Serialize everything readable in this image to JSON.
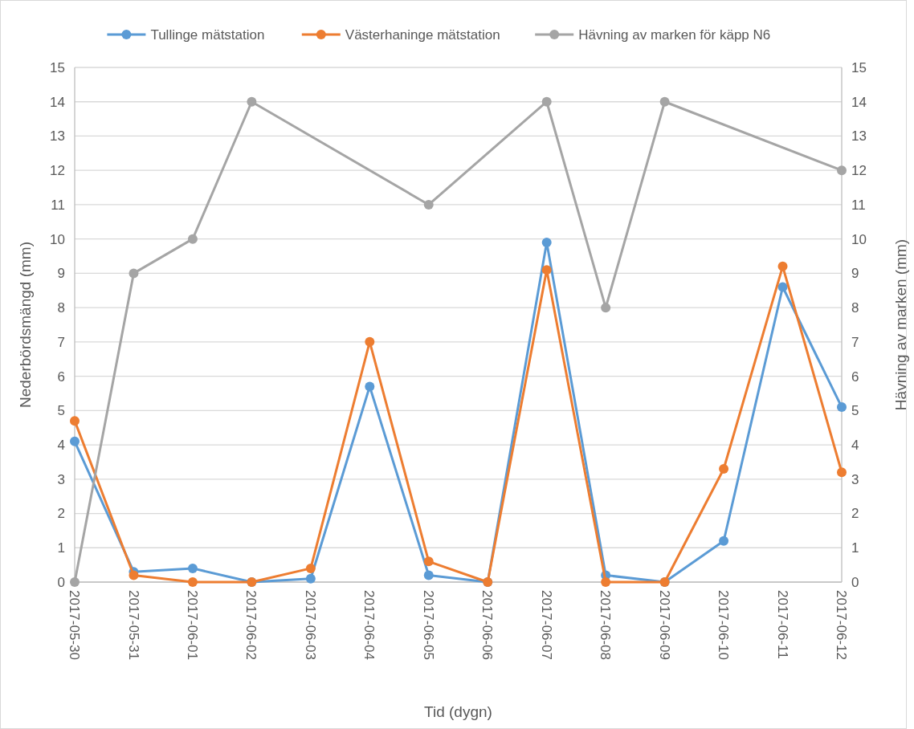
{
  "chart_data": {
    "type": "line",
    "xlabel": "Tid (dygn)",
    "ylabel": "Nederbördsmängd (mm)",
    "y2label": "Hävning av marken (mm)",
    "x": [
      "2017-05-30",
      "2017-05-31",
      "2017-06-01",
      "2017-06-02",
      "2017-06-03",
      "2017-06-04",
      "2017-06-05",
      "2017-06-06",
      "2017-06-07",
      "2017-06-08",
      "2017-06-09",
      "2017-06-10",
      "2017-06-11",
      "2017-06-12"
    ],
    "xlim": [
      "2017-05-30",
      "2017-06-12"
    ],
    "xticks": [
      "2017-05-30",
      "2017-05-31",
      "2017-06-01",
      "2017-06-02",
      "2017-06-03",
      "2017-06-04",
      "2017-06-05",
      "2017-06-06",
      "2017-06-07",
      "2017-06-08",
      "2017-06-09",
      "2017-06-10",
      "2017-06-11",
      "2017-06-12"
    ],
    "series": [
      {
        "name": "Tullinge mätstation",
        "color": "#5b9bd5",
        "values": [
          4.1,
          0.3,
          0.4,
          0,
          0.1,
          5.7,
          0.2,
          0,
          9.9,
          0.2,
          0,
          1.2,
          8.6,
          5.1
        ]
      },
      {
        "name": "Västerhaninge mätstation",
        "color": "#ed7d31",
        "values": [
          4.7,
          0.2,
          0,
          0,
          0.4,
          7,
          0.6,
          0,
          9.1,
          0,
          0,
          3.3,
          9.2,
          3.2
        ]
      },
      {
        "name": "Hävning av marken för käpp N6",
        "color": "#a5a5a5",
        "axis": "y2",
        "x": [
          "2017-05-30",
          "2017-05-31",
          "2017-06-01",
          "2017-06-02",
          "2017-06-05",
          "2017-06-07",
          "2017-06-08",
          "2017-06-09",
          "2017-06-12"
        ],
        "values": [
          0,
          9,
          10,
          14,
          11,
          14,
          8,
          14,
          12
        ]
      }
    ],
    "ylim": [
      0,
      15
    ],
    "yticks": [
      0,
      1,
      2,
      3,
      4,
      5,
      6,
      7,
      8,
      9,
      10,
      11,
      12,
      13,
      14,
      15
    ],
    "y2lim": [
      0,
      15
    ],
    "y2ticks": [
      0,
      1,
      2,
      3,
      4,
      5,
      6,
      7,
      8,
      9,
      10,
      11,
      12,
      13,
      14,
      15
    ],
    "grid": "y",
    "legend": "top",
    "marker": "circle",
    "line_style": "solid"
  }
}
